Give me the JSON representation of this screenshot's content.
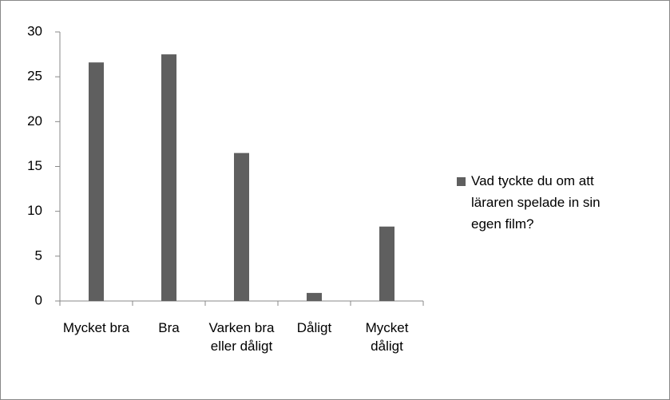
{
  "chart_data": {
    "type": "bar",
    "categories": [
      "Mycket bra",
      "Bra",
      "Varken bra eller dåligt",
      "Dåligt",
      "Mycket dåligt"
    ],
    "series": [
      {
        "name": "Vad tyckte du om att läraren spelade in sin egen film?",
        "color": "#5f5f5f",
        "values": [
          26.6,
          27.5,
          16.5,
          0.9,
          8.3
        ]
      }
    ],
    "ylim": [
      0,
      30
    ],
    "yticks": [
      0,
      5,
      10,
      15,
      20,
      25,
      30
    ],
    "grid": false,
    "legend": "right"
  }
}
